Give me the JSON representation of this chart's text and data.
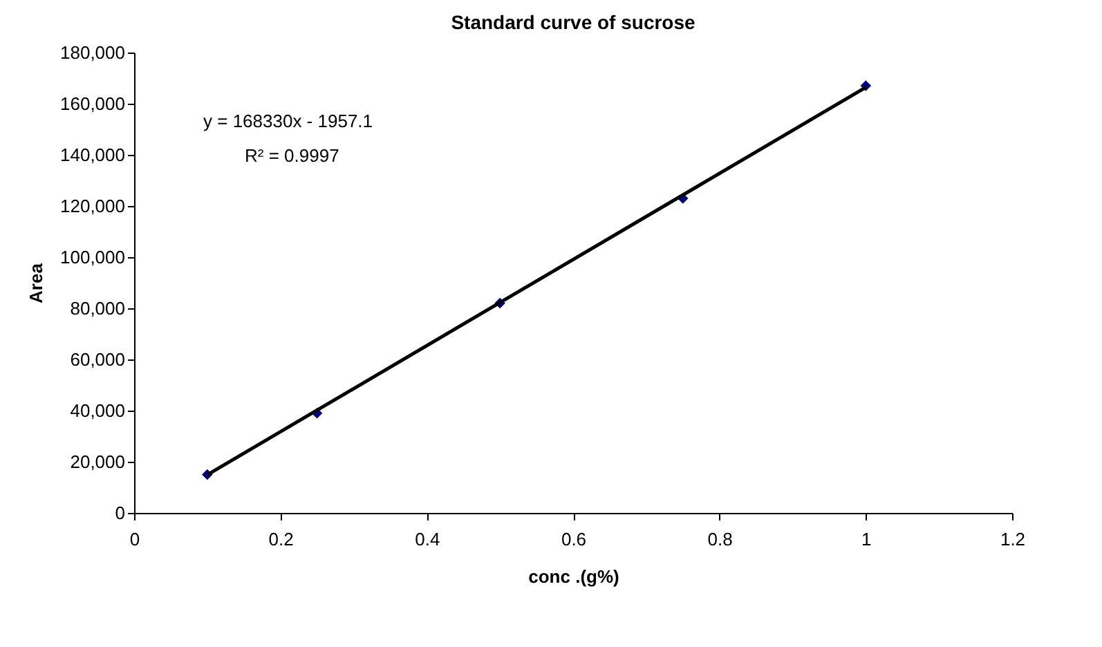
{
  "chart_data": {
    "type": "scatter",
    "title": "Standard curve of sucrose",
    "xlabel": "conc .(g%)",
    "ylabel": "Area",
    "x": [
      0.1,
      0.25,
      0.5,
      0.75,
      1
    ],
    "series": [
      {
        "color": "#000080",
        "marker": "diamond",
        "values": [
          15000,
          39000,
          82000,
          123000,
          167000
        ]
      },
      {
        "type": "line",
        "color": "#000000",
        "x": [
          0.1,
          1
        ],
        "values": [
          14900,
          166400
        ]
      }
    ],
    "annotations": [
      "y = 168330x - 1957.1",
      "R² = 0.9997"
    ],
    "xlim": [
      0,
      1.2
    ],
    "xticks": [
      0,
      0.2,
      0.4,
      0.6,
      0.8,
      1,
      1.2
    ],
    "ylim": [
      0,
      180000
    ],
    "yticks": [
      0,
      {
        "value": 20000,
        "label": "20,000"
      },
      {
        "value": 40000,
        "label": "40,000"
      },
      {
        "value": 60000,
        "label": "60,000"
      },
      {
        "value": 80000,
        "label": "80,000"
      },
      {
        "value": 100000,
        "label": "100,000"
      },
      {
        "value": 120000,
        "label": "120,000"
      },
      {
        "value": 140000,
        "label": "140,000"
      },
      {
        "value": 160000,
        "label": "160,000"
      },
      {
        "value": 180000,
        "label": "180,000"
      }
    ],
    "grid": false,
    "legend": false
  }
}
